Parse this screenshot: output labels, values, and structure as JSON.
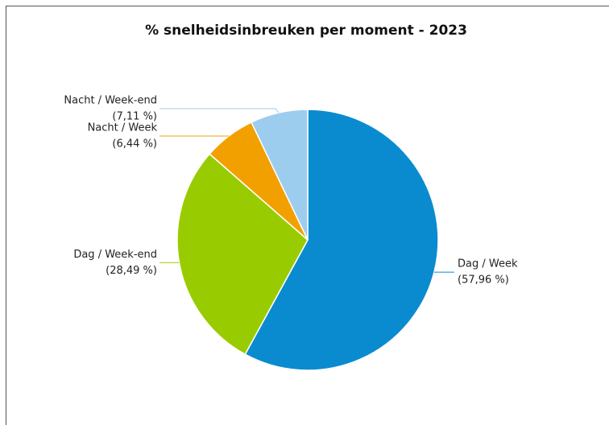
{
  "chart_data": {
    "type": "pie",
    "title": "% snelheidsinbreuken per moment - 2023",
    "categories": [
      "Dag / Week",
      "Dag / Week-end",
      "Nacht / Week",
      "Nacht / Week-end"
    ],
    "values": [
      57.96,
      28.49,
      6.44,
      7.11
    ],
    "value_labels": [
      "(57,96 %)",
      "(28,49 %)",
      "(6,44 %)",
      "(7,11 %)"
    ],
    "colors": [
      "#0a8bd0",
      "#99cc00",
      "#f2a000",
      "#9dcdee"
    ]
  }
}
